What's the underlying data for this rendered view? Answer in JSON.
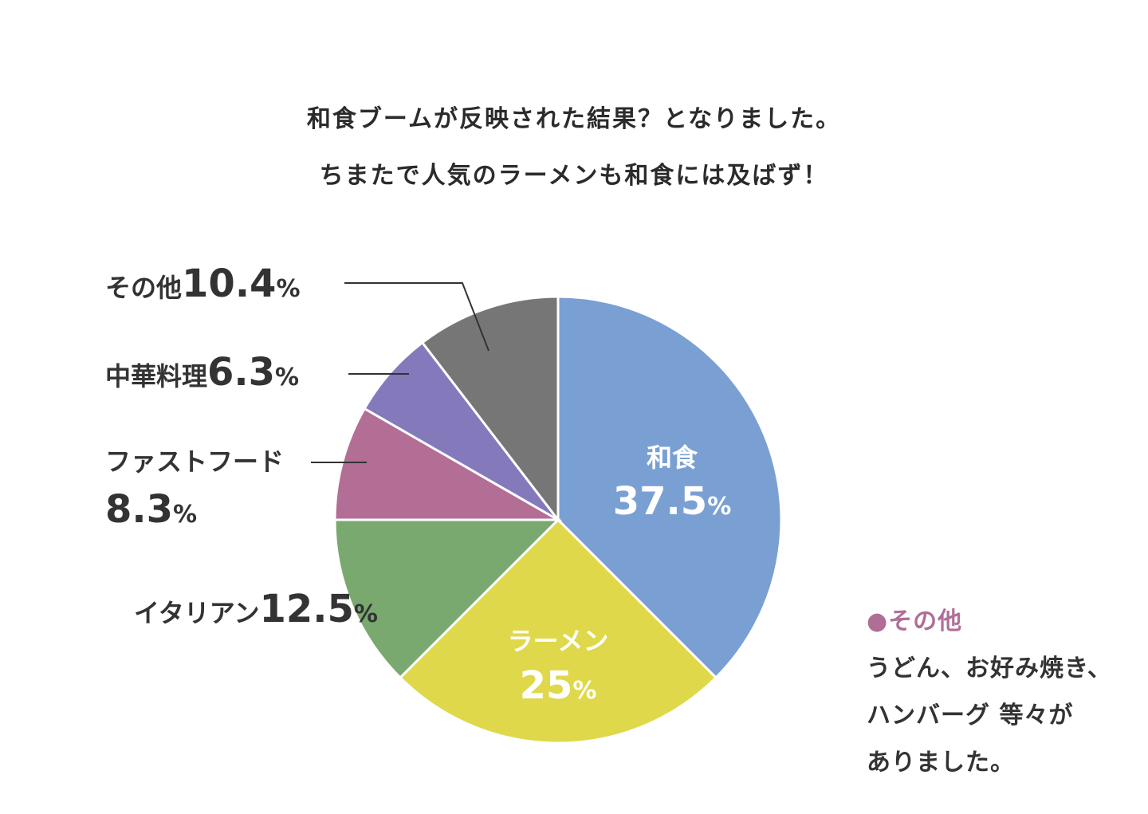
{
  "heading": {
    "line1": "和食ブームが反映された結果？となりました。",
    "line2": "ちまたで人気のラーメンも和食には及ばず！"
  },
  "chart_data": {
    "type": "pie",
    "start": "12 o'clock, clockwise",
    "slices": [
      {
        "name": "和食",
        "value": 37.5,
        "num": "37.5",
        "unit": "%",
        "color": "#7aa0d3",
        "label_inside": true
      },
      {
        "name": "ラーメン",
        "value": 25,
        "num": "25",
        "unit": "%",
        "color": "#dfd84a",
        "label_inside": true
      },
      {
        "name": "イタリアン",
        "value": 12.5,
        "num": "12.5",
        "unit": "%",
        "color": "#79a96f",
        "label_inside": false
      },
      {
        "name": "ファストフード",
        "value": 8.3,
        "num": "8.3",
        "unit": "%",
        "color": "#b36e96",
        "label_inside": false
      },
      {
        "name": "中華料理",
        "value": 6.3,
        "num": "6.3",
        "unit": "%",
        "color": "#8479bb",
        "label_inside": false
      },
      {
        "name": "その他",
        "value": 10.4,
        "num": "10.4",
        "unit": "%",
        "color": "#767676",
        "label_inside": false
      }
    ]
  },
  "note": {
    "title": "●その他",
    "line1": "うどん、お好み焼き、",
    "line2": "ハンバーグ 等々が",
    "line3": "ありました。"
  }
}
